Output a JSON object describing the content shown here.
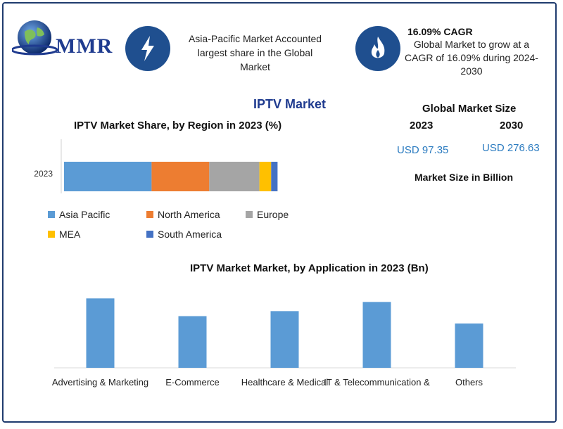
{
  "logo": {
    "text": "MMR"
  },
  "highlights": [
    {
      "icon": "lightning-icon",
      "lines": [
        "Asia-Pacific Market Accounted",
        "largest share in the Global",
        "Market"
      ]
    },
    {
      "icon": "flame-icon",
      "heading": "16.09% CAGR",
      "lines": [
        "Global Market to grow at a",
        "CAGR of 16.09% during 2024-",
        "2030"
      ]
    }
  ],
  "page_title": "IPTV Market",
  "market_size": {
    "title": "Global Market Size",
    "year_start": "2023",
    "year_end": "2030",
    "value_start": "USD 97.35",
    "value_end": "USD 276.63",
    "unit_note": "Market Size in Billion"
  },
  "colors": {
    "asia_pacific": "#5b9bd5",
    "north_america": "#ed7d31",
    "europe": "#a5a5a5",
    "mea": "#ffc000",
    "south_america": "#4472c4",
    "application_bar": "#5b9bd5"
  },
  "chart_data": [
    {
      "type": "bar",
      "orientation": "horizontal-stacked",
      "title": "IPTV Market Share, by Region in 2023 (%)",
      "categories": [
        "2023"
      ],
      "xlim": [
        0,
        100
      ],
      "series": [
        {
          "name": "Asia Pacific",
          "values": [
            41
          ]
        },
        {
          "name": "North America",
          "values": [
            27
          ]
        },
        {
          "name": "Europe",
          "values": [
            23.5
          ]
        },
        {
          "name": "MEA",
          "values": [
            5.5
          ]
        },
        {
          "name": "South America",
          "values": [
            3
          ]
        }
      ],
      "legend": "bottom"
    },
    {
      "type": "bar",
      "title": "IPTV Market Market, by Application in 2023 (Bn)",
      "categories": [
        "Advertising & Marketing",
        "E-Commerce",
        "Healthcare & Medical",
        "IT & Telecommunication &",
        "Others"
      ],
      "values": [
        23.5,
        17.5,
        19.2,
        22.3,
        15
      ],
      "ylim": [
        0,
        25
      ],
      "grid": false
    }
  ]
}
